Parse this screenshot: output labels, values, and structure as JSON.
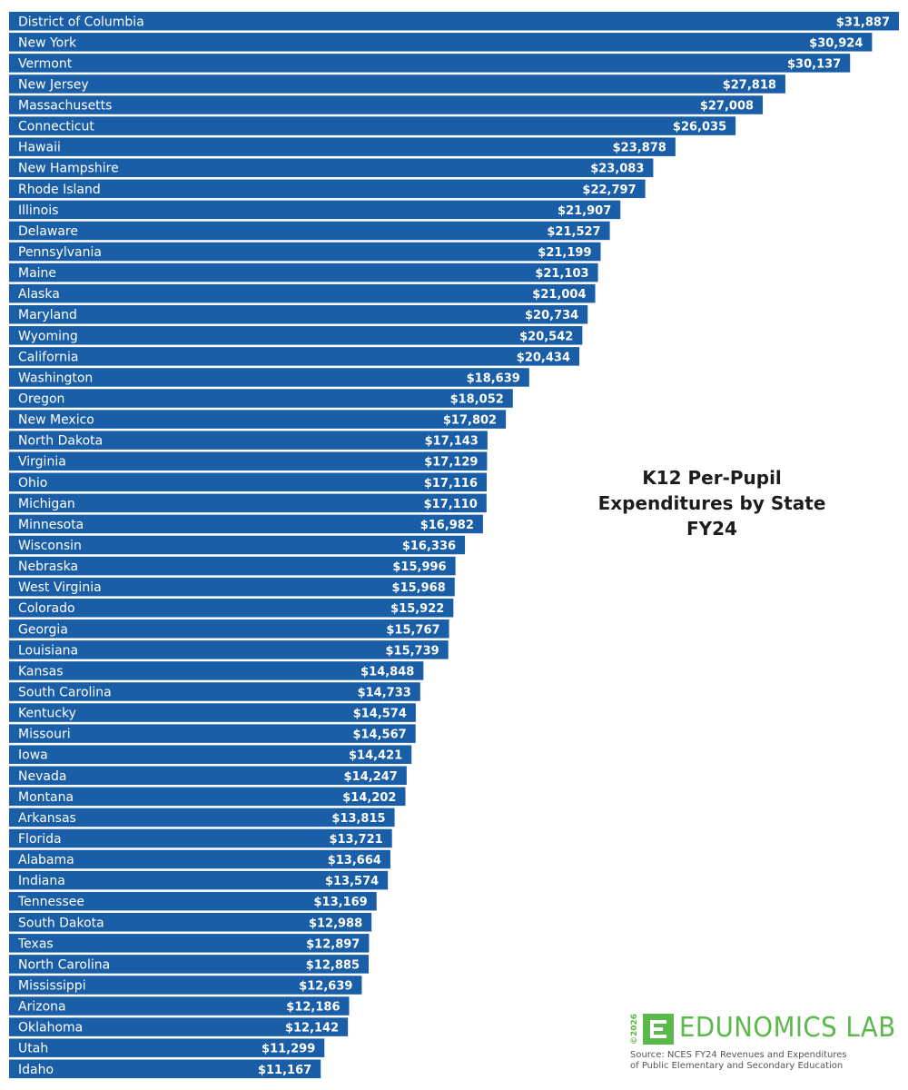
{
  "chart_data": {
    "type": "bar",
    "orientation": "horizontal",
    "title": [
      "K12 Per-Pupil",
      "Expenditures by State",
      "FY24"
    ],
    "value_prefix": "$",
    "bar_color": "#1a5ea8",
    "xlabel": "",
    "ylabel": "",
    "grid": false,
    "categories": [
      "District of Columbia",
      "New York",
      "Vermont",
      "New Jersey",
      "Massachusetts",
      "Connecticut",
      "Hawaii",
      "New Hampshire",
      "Rhode Island",
      "Illinois",
      "Delaware",
      "Pennsylvania",
      "Maine",
      "Alaska",
      "Maryland",
      "Wyoming",
      "California",
      "Washington",
      "Oregon",
      "New Mexico",
      "North Dakota",
      "Virginia",
      "Ohio",
      "Michigan",
      "Minnesota",
      "Wisconsin",
      "Nebraska",
      "West Virginia",
      "Colorado",
      "Georgia",
      "Louisiana",
      "Kansas",
      "South Carolina",
      "Kentucky",
      "Missouri",
      "Iowa",
      "Nevada",
      "Montana",
      "Arkansas",
      "Florida",
      "Alabama",
      "Indiana",
      "Tennessee",
      "South Dakota",
      "Texas",
      "North Carolina",
      "Mississippi",
      "Arizona",
      "Oklahoma",
      "Utah",
      "Idaho"
    ],
    "values": [
      31887,
      30924,
      30137,
      27818,
      27008,
      26035,
      23878,
      23083,
      22797,
      21907,
      21527,
      21199,
      21103,
      21004,
      20734,
      20542,
      20434,
      18639,
      18052,
      17802,
      17143,
      17129,
      17116,
      17110,
      16982,
      16336,
      15996,
      15968,
      15922,
      15767,
      15739,
      14848,
      14733,
      14574,
      14567,
      14421,
      14247,
      14202,
      13815,
      13721,
      13664,
      13574,
      13169,
      12988,
      12897,
      12885,
      12639,
      12186,
      12142,
      11299,
      11167
    ]
  },
  "brand": {
    "year": "©2026",
    "name": "EDUNOMICS LAB",
    "color": "#5bb84b",
    "source_lines": [
      "Source: NCES FY24 Revenues and Expenditures",
      "of Public Elementary and Secondary Education"
    ]
  }
}
